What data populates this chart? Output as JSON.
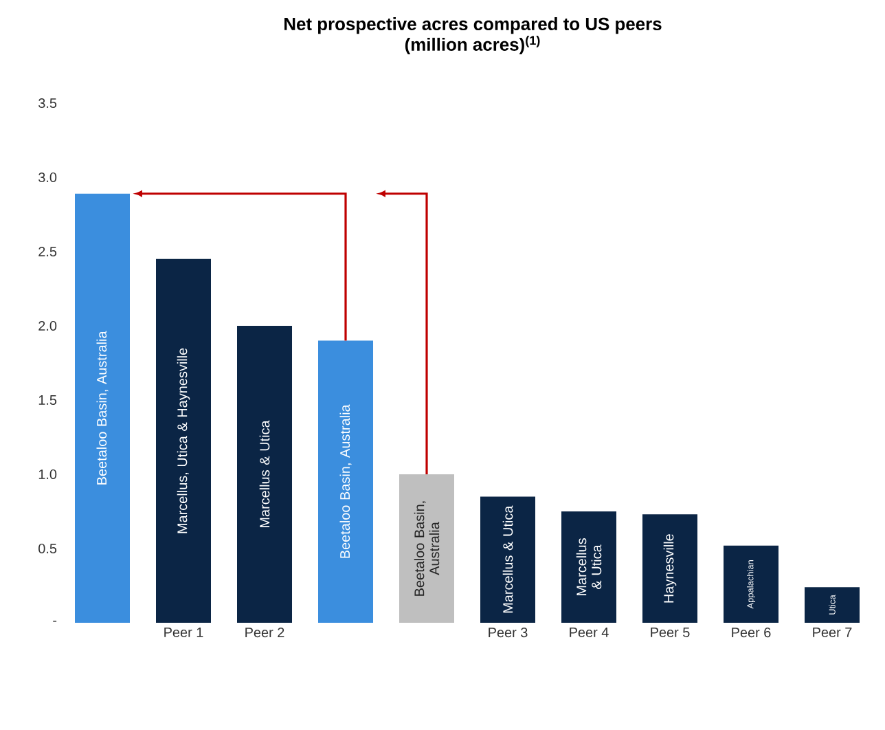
{
  "chart_data": {
    "type": "bar",
    "title": "Net prospective acres compared to US peers",
    "subtitle": "(million acres)$^{(1)}$",
    "categories": [
      null,
      "Peer 1",
      "Peer 2",
      null,
      null,
      "Peer 3",
      "Peer 4",
      "Peer 5",
      "Peer 6",
      "Peer 7"
    ],
    "values": [
      2.89,
      2.45,
      2.0,
      1.9,
      1.0,
      0.85,
      0.75,
      0.73,
      0.52,
      0.24
    ],
    "colors": [
      "#3b8ede",
      "#0b2545",
      "#0b2545",
      "#3b8ede",
      "#bfbfbf",
      "#0b2545",
      "#0b2545",
      "#0b2545",
      "#0b2545",
      "#0b2545"
    ],
    "ylim": [
      0,
      3.5
    ],
    "yticks": [
      {
        "value": 0,
        "label": "-"
      },
      0.5,
      {
        "value": 1,
        "label": "1.0"
      },
      1.5,
      {
        "value": 2,
        "label": "2.0"
      },
      2.5,
      {
        "value": 3,
        "label": "3.0"
      },
      3.5
    ],
    "annotations": [
      "Beetaloo Basin, Australia",
      "Marcellus, Utica & Haynesville",
      "Marcellus & Utica",
      "Beetaloo Basin, Australia",
      "Beetaloo Basin, Australia",
      "Marcellus & Utica",
      "Marcellus & Utica",
      "Haynesville",
      "Appalachian",
      "Utica"
    ],
    "orientation": "vertical"
  }
}
